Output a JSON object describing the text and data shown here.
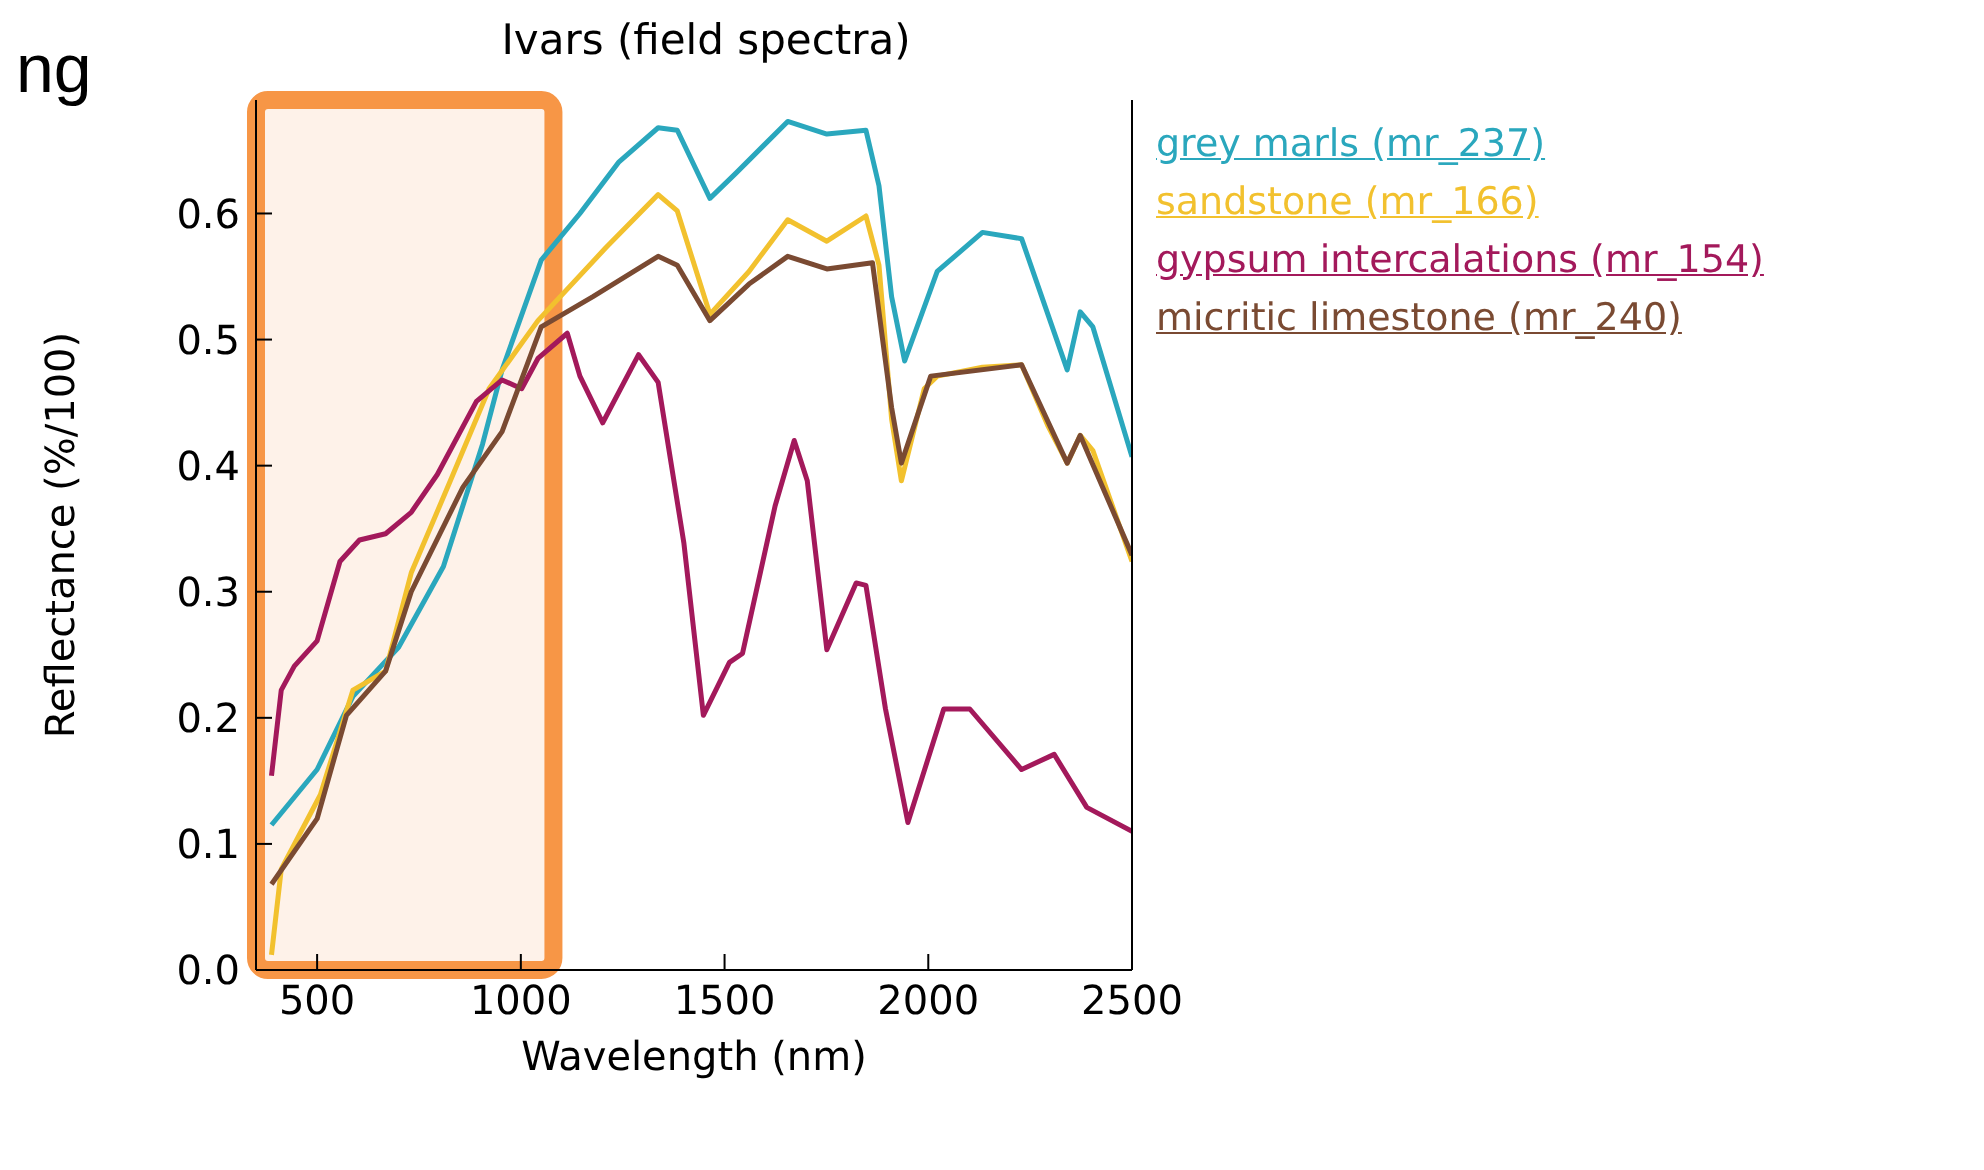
{
  "chart_data": {
    "type": "line",
    "title": "Ivars (field spectra)",
    "xlabel": "Wavelength (nm)",
    "ylabel": "Reflectance (%/100)",
    "annotations": [
      "ng"
    ],
    "xlim": [
      350,
      2500
    ],
    "xticks": [
      500,
      1000,
      1500,
      2000,
      2500
    ],
    "ylim": [
      0,
      0.69
    ],
    "yticks": [
      {
        "value": 0,
        "label": "0.0"
      },
      {
        "value": 0.1,
        "label": "0.1"
      },
      {
        "value": 0.2,
        "label": "0.2"
      },
      {
        "value": 0.3,
        "label": "0.3"
      },
      {
        "value": 0.4,
        "label": "0.4"
      },
      {
        "value": 0.5,
        "label": "0.5"
      },
      {
        "value": 0.6,
        "label": "0.6"
      }
    ],
    "legend": "top right",
    "marker": "none",
    "line_style": "solid",
    "bands": [
      {
        "axis": "x",
        "from": 350,
        "to": 1080,
        "color": "#f79646"
      }
    ],
    "series": [
      {
        "name": "grey marls (mr_237)",
        "color": "#2aa7bd",
        "x": [
          388,
          500,
          588,
          700,
          810,
          906,
          954,
          1050,
          1145,
          1241,
          1337,
          1384,
          1464,
          1528,
          1655,
          1751,
          1847,
          1879,
          1910,
          1942,
          2022,
          2133,
          2229,
          2341,
          2373,
          2404,
          2500
        ],
        "values": [
          0.115,
          0.159,
          0.217,
          0.256,
          0.32,
          0.417,
          0.476,
          0.563,
          0.6,
          0.641,
          0.668,
          0.666,
          0.612,
          0.632,
          0.673,
          0.663,
          0.666,
          0.622,
          0.534,
          0.483,
          0.554,
          0.585,
          0.58,
          0.476,
          0.522,
          0.51,
          0.407
        ]
      },
      {
        "name": "sandstone (mr_166)",
        "color": "#f2c12e",
        "x": [
          388,
          412,
          508,
          588,
          668,
          731,
          827,
          922,
          1042,
          1209,
          1337,
          1384,
          1464,
          1560,
          1655,
          1751,
          1847,
          1879,
          1910,
          1934,
          1990,
          2022,
          2133,
          2229,
          2293,
          2341,
          2373,
          2404,
          2500
        ],
        "values": [
          0.012,
          0.08,
          0.139,
          0.222,
          0.237,
          0.315,
          0.388,
          0.461,
          0.515,
          0.573,
          0.615,
          0.602,
          0.52,
          0.554,
          0.595,
          0.578,
          0.598,
          0.559,
          0.437,
          0.388,
          0.461,
          0.471,
          0.478,
          0.48,
          0.432,
          0.402,
          0.424,
          0.412,
          0.324
        ]
      },
      {
        "name": "gypsum intercalations (mr_154)",
        "color": "#a3195b",
        "x": [
          388,
          412,
          444,
          500,
          556,
          604,
          668,
          731,
          795,
          891,
          954,
          1002,
          1042,
          1114,
          1145,
          1201,
          1289,
          1337,
          1400,
          1448,
          1512,
          1544,
          1624,
          1671,
          1703,
          1751,
          1823,
          1847,
          1895,
          1950,
          2038,
          2102,
          2229,
          2309,
          2389,
          2500
        ],
        "values": [
          0.154,
          0.222,
          0.241,
          0.261,
          0.324,
          0.341,
          0.346,
          0.363,
          0.393,
          0.451,
          0.468,
          0.461,
          0.485,
          0.505,
          0.471,
          0.434,
          0.488,
          0.466,
          0.339,
          0.202,
          0.244,
          0.251,
          0.368,
          0.42,
          0.388,
          0.254,
          0.307,
          0.305,
          0.207,
          0.117,
          0.207,
          0.207,
          0.159,
          0.171,
          0.129,
          0.11
        ]
      },
      {
        "name": "micritic limestone (mr_240)",
        "color": "#7a4a32",
        "x": [
          388,
          500,
          572,
          668,
          731,
          858,
          954,
          1050,
          1177,
          1337,
          1384,
          1464,
          1560,
          1655,
          1751,
          1863,
          1910,
          1934,
          2006,
          2229,
          2341,
          2373,
          2500
        ],
        "values": [
          0.068,
          0.12,
          0.202,
          0.237,
          0.3,
          0.383,
          0.427,
          0.51,
          0.534,
          0.566,
          0.559,
          0.515,
          0.544,
          0.566,
          0.556,
          0.561,
          0.446,
          0.402,
          0.471,
          0.48,
          0.402,
          0.424,
          0.329
        ]
      }
    ]
  }
}
